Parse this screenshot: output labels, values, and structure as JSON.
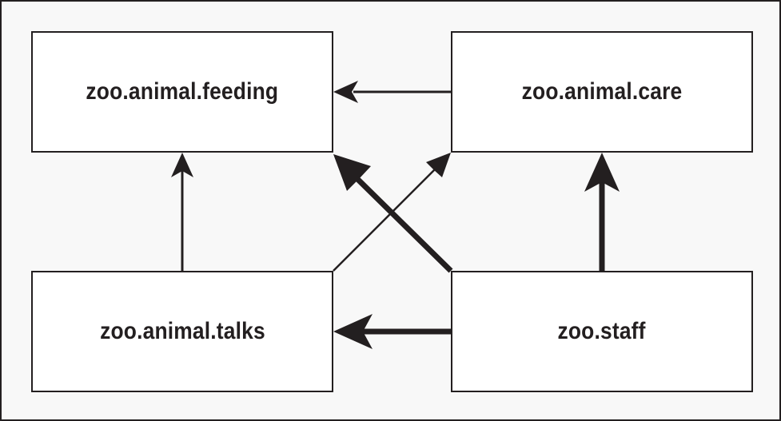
{
  "diagram": {
    "nodes": {
      "feeding": "zoo.animal.feeding",
      "care": "zoo.animal.care",
      "talks": "zoo.animal.talks",
      "staff": "zoo.staff"
    },
    "edges": [
      {
        "from": "zoo.animal.care",
        "to": "zoo.animal.feeding",
        "weight": "thin"
      },
      {
        "from": "zoo.animal.talks",
        "to": "zoo.animal.feeding",
        "weight": "thin"
      },
      {
        "from": "zoo.animal.talks",
        "to": "zoo.animal.care",
        "weight": "thin"
      },
      {
        "from": "zoo.staff",
        "to": "zoo.animal.feeding",
        "weight": "thick"
      },
      {
        "from": "zoo.staff",
        "to": "zoo.animal.care",
        "weight": "thick"
      },
      {
        "from": "zoo.staff",
        "to": "zoo.animal.talks",
        "weight": "thick"
      }
    ],
    "colors": {
      "stroke": "#231f20",
      "background": "#f8f8f8",
      "box_fill": "#ffffff"
    }
  }
}
